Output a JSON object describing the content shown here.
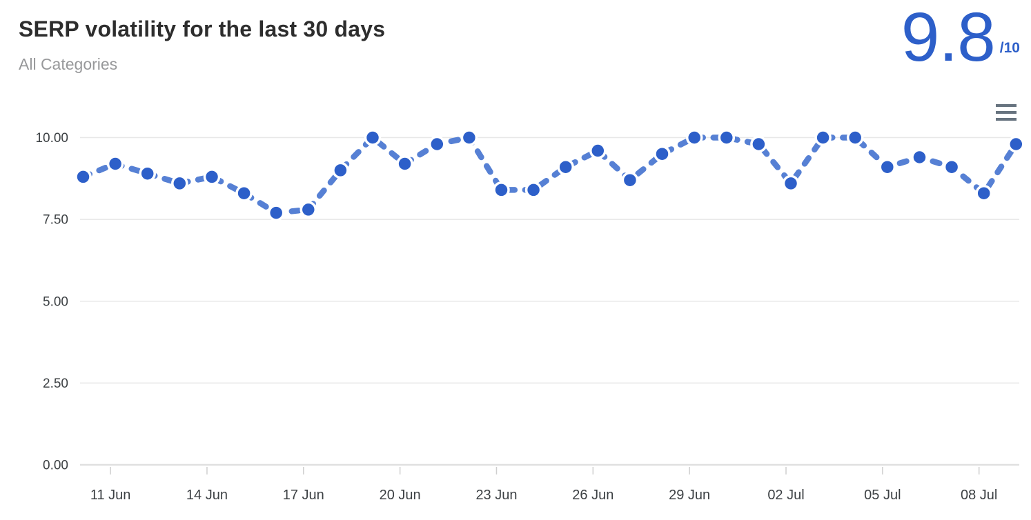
{
  "header": {
    "title": "SERP volatility for the last 30 days",
    "subtitle": "All Categories",
    "score": "9.8",
    "score_max": "/10"
  },
  "toolbar": {
    "menu_icon": "hamburger-menu-icon"
  },
  "colors": {
    "accent_blue": "#2d5fc9",
    "dot_fill": "#2d5fc9",
    "dot_halo": "#ffffff",
    "line_blue": "#5680d4",
    "grid": "#e7e7e7",
    "axis_line": "#e0e0e0",
    "tick": "#cfcfcf",
    "axis_text": "#3c4043",
    "title_text": "#2d2d2d",
    "subtitle_text": "#97989a",
    "menu_icon": "#67737f"
  },
  "chart_data": {
    "type": "line",
    "title": "SERP volatility for the last 30 days",
    "series_name": "SERP volatility",
    "line_style": "dashed",
    "marker": "circle",
    "legend": "none",
    "grid": "horizontal",
    "ylim": [
      0,
      10
    ],
    "y_tick_labels": [
      "10.00",
      "7.50",
      "5.00",
      "2.50",
      "0.00"
    ],
    "x_tick_labels": [
      "11 Jun",
      "14 Jun",
      "17 Jun",
      "20 Jun",
      "23 Jun",
      "26 Jun",
      "29 Jun",
      "02 Jul",
      "05 Jul",
      "08 Jul"
    ],
    "x_tick_start_index": 1,
    "x_tick_every": 3,
    "dates": [
      "10 Jun",
      "11 Jun",
      "12 Jun",
      "13 Jun",
      "14 Jun",
      "15 Jun",
      "16 Jun",
      "17 Jun",
      "18 Jun",
      "19 Jun",
      "20 Jun",
      "21 Jun",
      "22 Jun",
      "23 Jun",
      "24 Jun",
      "25 Jun",
      "26 Jun",
      "27 Jun",
      "28 Jun",
      "29 Jun",
      "30 Jun",
      "01 Jul",
      "02 Jul",
      "03 Jul",
      "04 Jul",
      "05 Jul",
      "06 Jul",
      "07 Jul",
      "08 Jul",
      "09 Jul"
    ],
    "values": [
      8.8,
      9.2,
      8.9,
      8.6,
      8.8,
      8.3,
      7.7,
      7.8,
      9.0,
      10.0,
      9.2,
      9.8,
      10.0,
      8.4,
      8.4,
      9.1,
      9.6,
      8.7,
      9.5,
      10.0,
      10.0,
      9.8,
      8.6,
      10.0,
      10.0,
      9.1,
      9.4,
      9.1,
      8.3,
      9.8
    ]
  }
}
